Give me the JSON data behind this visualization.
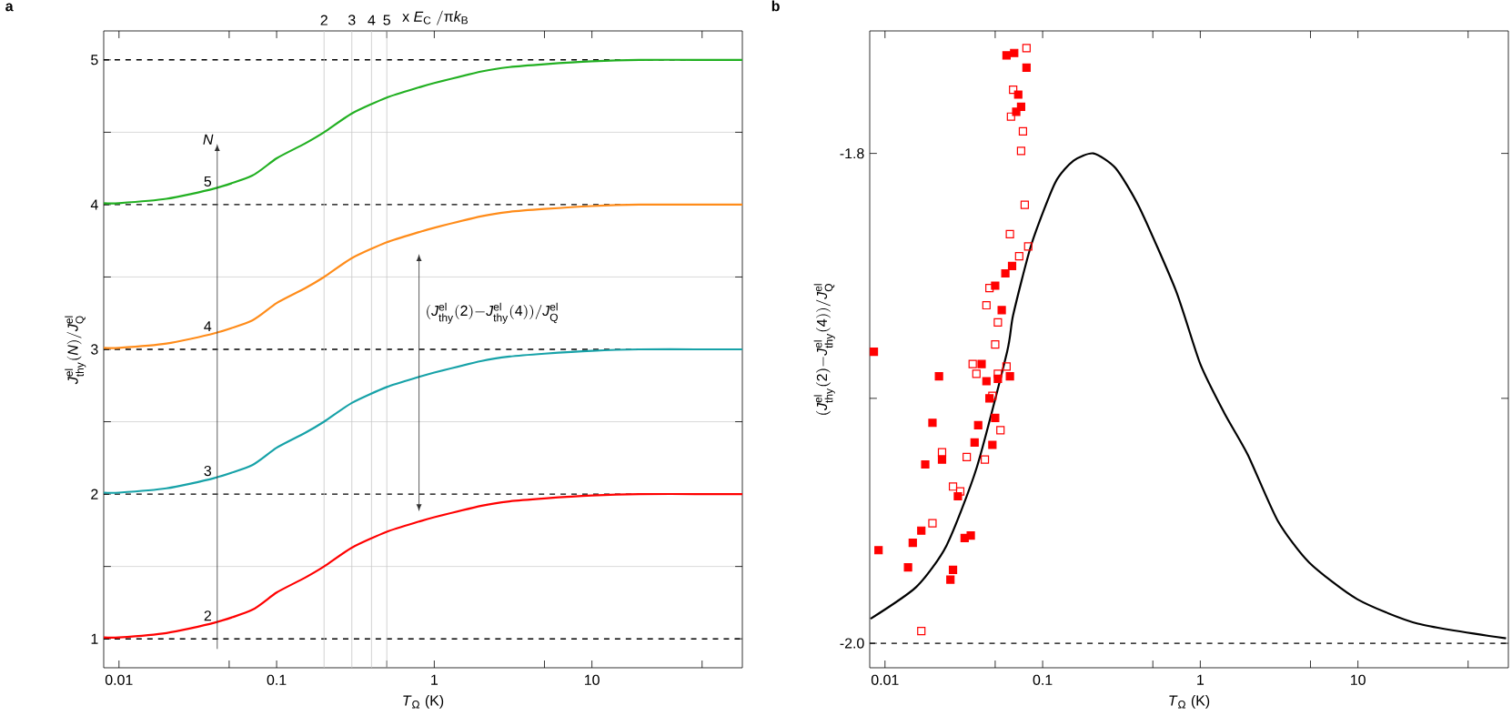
{
  "chart_data": [
    {
      "type": "line",
      "title": "a",
      "xlabel": "*T*$_{Ω}$ (K)",
      "ylabel": "\\mathit{J}^{\\mathrm{el}}_{\\mathrm{thy}}\\mathrm{(}\\mathit{N}\\mathrm{)/}\\mathit{J}^{\\mathrm{el}}_{\\mathrm{Q}}",
      "log": "x",
      "grid": "y",
      "xlim": [
        0.008,
        90
      ],
      "ylim": [
        0.8,
        5.2
      ],
      "xticks": [
        0.01,
        {
          "value": 0.05,
          "label": null
        },
        0.1,
        {
          "value": 0.5,
          "label": null
        },
        1,
        {
          "value": 5,
          "label": null
        },
        10,
        {
          "value": 50,
          "label": null
        }
      ],
      "yticks": [
        1,
        {
          "value": 1.5,
          "label": null
        },
        2,
        {
          "value": 2.5,
          "label": null
        },
        3,
        {
          "value": 3.5,
          "label": null
        },
        4,
        {
          "value": 4.5,
          "label": null
        },
        5
      ],
      "x": [
        0.008,
        0.01,
        0.02,
        0.04,
        0.07,
        0.1,
        0.15,
        0.2,
        0.3,
        0.5,
        0.8,
        1,
        2,
        3,
        5,
        10,
        20,
        50,
        90
      ],
      "series": [
        {
          "color": "#ff0000",
          "values": [
            1.01,
            1.01,
            1.04,
            1.11,
            1.2,
            1.32,
            1.42,
            1.5,
            1.63,
            1.74,
            1.81,
            1.84,
            1.92,
            1.95,
            1.97,
            1.99,
            2.0,
            2.0,
            2.0
          ]
        },
        {
          "color": "#17a2a8",
          "values": [
            2.01,
            2.01,
            2.04,
            2.11,
            2.2,
            2.32,
            2.42,
            2.5,
            2.63,
            2.74,
            2.81,
            2.84,
            2.92,
            2.95,
            2.97,
            2.99,
            3.0,
            3.0,
            3.0
          ]
        },
        {
          "color": "#ff8c1a",
          "values": [
            3.01,
            3.01,
            3.04,
            3.11,
            3.2,
            3.32,
            3.42,
            3.5,
            3.63,
            3.74,
            3.81,
            3.84,
            3.92,
            3.95,
            3.97,
            3.99,
            4.0,
            4.0,
            4.0
          ]
        },
        {
          "color": "#22b022",
          "values": [
            4.01,
            4.01,
            4.04,
            4.11,
            4.2,
            4.32,
            4.42,
            4.5,
            4.63,
            4.74,
            4.81,
            4.84,
            4.92,
            4.95,
            4.97,
            4.99,
            5.0,
            5.0,
            5.0
          ]
        }
      ],
      "ref_lines": [
        {
          "axis": "x",
          "value": 0.2,
          "color": "#c8c8c8"
        },
        {
          "axis": "x",
          "value": 0.3,
          "color": "#c8c8c8"
        },
        {
          "axis": "x",
          "value": 0.4,
          "color": "#c8c8c8"
        },
        {
          "axis": "x",
          "value": 0.5,
          "color": "#c8c8c8"
        }
      ],
      "annotations": [
        {
          "text": "2",
          "x": 0.2,
          "y": 5.2
        },
        {
          "text": "3",
          "x": 0.3,
          "y": 5.2
        },
        {
          "text": "4",
          "x": 0.4,
          "y": 5.2
        },
        {
          "text": "5",
          "x": 0.5,
          "y": 5.2
        },
        "\\mathrm{x}\\ \\mathit{E}_{\\mathrm{C}}\\ \\mathrm{/π}\\mathit{k}_{\\mathrm{B}}",
        "\\mathrm{(}\\mathit{J}^{\\mathrm{el}}_{\\mathrm{thy}}\\mathrm{(2)-}\\mathit{J}^{\\mathrm{el}}_{\\mathrm{thy}}\\mathrm{(4))/}\\mathit{J}^{\\mathrm{el}}_{\\mathrm{Q}}",
        "*N*",
        {
          "text": "2",
          "x": 0.04,
          "y": 1.11
        },
        {
          "text": "3",
          "x": 0.04,
          "y": 2.11
        },
        {
          "text": "4",
          "x": 0.04,
          "y": 3.11
        },
        {
          "text": "5",
          "x": 0.04,
          "y": 4.11
        }
      ]
    },
    {
      "type": "scatter",
      "title": "b",
      "xlabel": "*T*$_{Ω}$ (K)",
      "ylabel": "\\mathrm{(}\\mathit{J}^{\\mathrm{el}}_{\\mathrm{thy}}\\mathrm{(2)-}\\mathit{J}^{\\mathrm{el}}_{\\mathrm{thy}}\\mathrm{(4))/}\\mathit{J}^{\\mathrm{el}}_{\\mathrm{Q}}",
      "log": "x",
      "xlim": [
        0.008,
        90
      ],
      "ylim": [
        -2.01,
        -1.75
      ],
      "xticks": [
        0.01,
        {
          "value": 0.05,
          "label": null
        },
        0.1,
        {
          "value": 0.5,
          "label": null
        },
        1,
        {
          "value": 5,
          "label": null
        },
        10,
        {
          "value": 50,
          "label": null
        }
      ],
      "yticks": [
        {
          "value": -2.0,
          "label": "-2.0"
        },
        {
          "value": -1.9,
          "label": null
        },
        -1.8
      ],
      "series": [
        {
          "type": "scatter",
          "marker": "square",
          "color": "#ff0000",
          "x": [
            0.059,
            0.066,
            0.079,
            0.07,
            0.068,
            0.073,
            0.064,
            0.058,
            0.05,
            0.055,
            0.0085,
            0.041,
            0.022,
            0.044,
            0.052,
            0.062,
            0.046,
            0.02,
            0.039,
            0.05,
            0.037,
            0.048,
            0.018,
            0.023,
            0.029,
            0.0091,
            0.015,
            0.017,
            0.014,
            0.027,
            0.026,
            0.032,
            0.035
          ],
          "values": [
            -1.76,
            -1.759,
            -1.765,
            -1.776,
            -1.783,
            -1.781,
            -1.846,
            -1.849,
            -1.854,
            -1.864,
            -1.881,
            -1.886,
            -1.891,
            -1.893,
            -1.892,
            -1.891,
            -1.9,
            -1.91,
            -1.911,
            -1.908,
            -1.918,
            -1.919,
            -1.927,
            -1.925,
            -1.94,
            -1.962,
            -1.959,
            -1.954,
            -1.969,
            -1.97,
            -1.974,
            -1.957,
            -1.956
          ]
        },
        {
          "type": "scatter",
          "marker": "square",
          "color": "#ff0000",
          "x": [
            0.079,
            0.065,
            0.063,
            0.075,
            0.073,
            0.077,
            0.062,
            0.081,
            0.071,
            0.046,
            0.044,
            0.052,
            0.05,
            0.036,
            0.038,
            0.052,
            0.059,
            0.048,
            0.054,
            0.023,
            0.033,
            0.043,
            0.027,
            0.03,
            0.02,
            0.017
          ],
          "values": [
            -1.757,
            -1.774,
            -1.785,
            -1.791,
            -1.799,
            -1.821,
            -1.833,
            -1.838,
            -1.842,
            -1.855,
            -1.862,
            -1.869,
            -1.878,
            -1.886,
            -1.89,
            -1.89,
            -1.887,
            -1.899,
            -1.913,
            -1.922,
            -1.924,
            -1.925,
            -1.936,
            -1.938,
            -1.951,
            -1.995
          ]
        },
        {
          "type": "line",
          "color": "#000000",
          "x": [
            0.0081,
            0.0158,
            0.0246,
            0.0383,
            0.0595,
            0.065,
            0.085,
            0.12,
            0.157,
            0.21,
            0.29,
            0.41,
            0.7,
            1.0,
            1.42,
            2.0,
            3.1,
            4.9,
            9.9,
            24,
            87
          ],
          "values": [
            -1.99,
            -1.977,
            -1.96,
            -1.928,
            -1.881,
            -1.866,
            -1.837,
            -1.812,
            -1.803,
            -1.8,
            -1.806,
            -1.822,
            -1.856,
            -1.886,
            -1.906,
            -1.923,
            -1.95,
            -1.967,
            -1.982,
            -1.992,
            -1.998
          ]
        }
      ],
      "ref_lines": [
        {
          "axis": "y",
          "value": -2.0,
          "color": "#000000",
          "line_style": "dashed"
        }
      ]
    }
  ]
}
